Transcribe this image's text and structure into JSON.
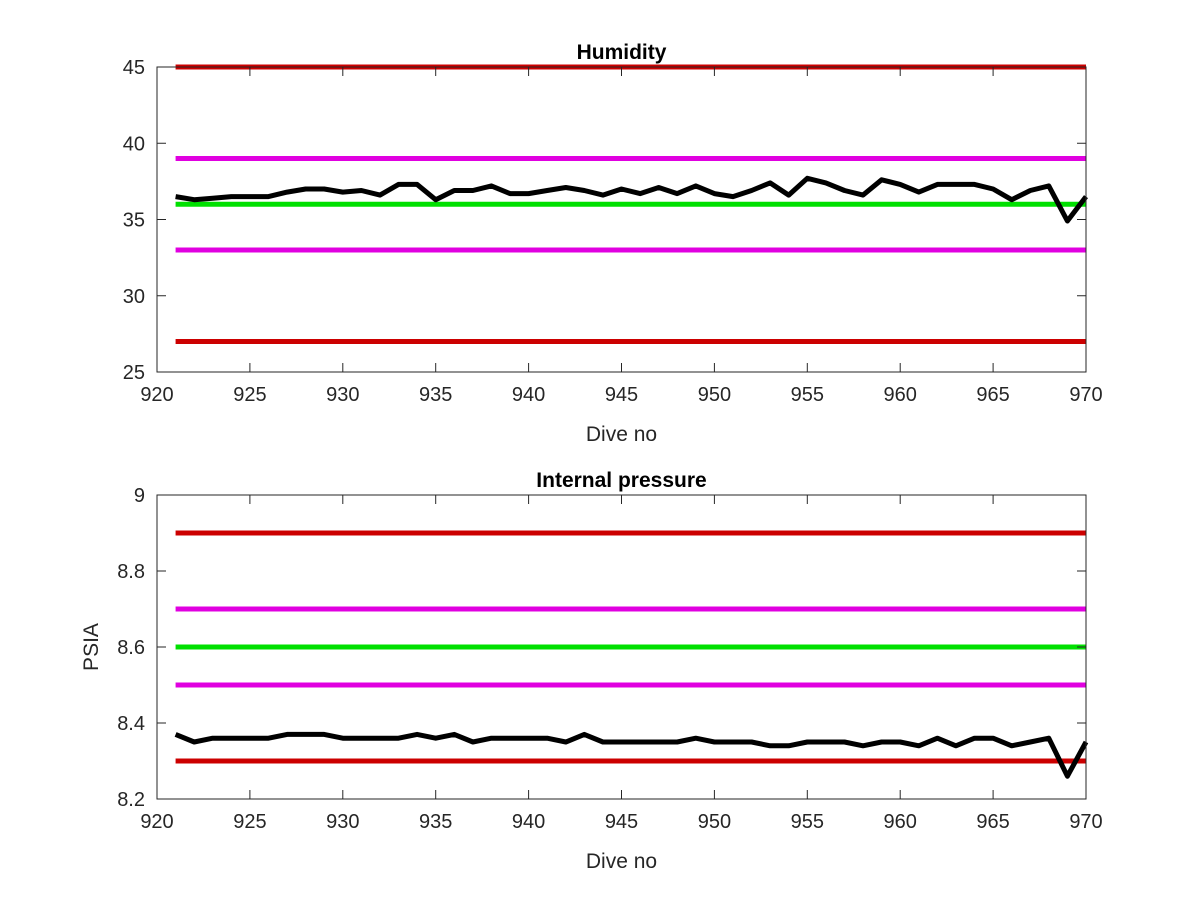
{
  "chart_data": [
    {
      "type": "line",
      "title": "Humidity",
      "xlabel": "Dive no",
      "ylabel": "",
      "xlim": [
        920,
        970
      ],
      "ylim": [
        25,
        45
      ],
      "xticks": [
        920,
        925,
        930,
        935,
        940,
        945,
        950,
        955,
        960,
        965,
        970
      ],
      "yticks": [
        25,
        30,
        35,
        40,
        45
      ],
      "grid": false,
      "reference_lines": [
        {
          "y": 45,
          "color": "#cc0000"
        },
        {
          "y": 39,
          "color": "#e000e0"
        },
        {
          "y": 36,
          "color": "#00e000"
        },
        {
          "y": 33,
          "color": "#e000e0"
        },
        {
          "y": 27,
          "color": "#cc0000"
        }
      ],
      "series": [
        {
          "color": "#000000",
          "x": [
            921,
            922,
            923,
            924,
            925,
            926,
            927,
            928,
            929,
            930,
            931,
            932,
            933,
            934,
            935,
            936,
            937,
            938,
            939,
            940,
            941,
            942,
            943,
            944,
            945,
            946,
            947,
            948,
            949,
            950,
            951,
            952,
            953,
            954,
            955,
            956,
            957,
            958,
            959,
            960,
            961,
            962,
            963,
            964,
            965,
            966,
            967,
            968,
            969,
            970
          ],
          "values": [
            36.5,
            36.3,
            36.4,
            36.5,
            36.5,
            36.5,
            36.8,
            37.0,
            37.0,
            36.8,
            36.9,
            36.6,
            37.3,
            37.3,
            36.3,
            36.9,
            36.9,
            37.2,
            36.7,
            36.7,
            36.9,
            37.1,
            36.9,
            36.6,
            37.0,
            36.7,
            37.1,
            36.7,
            37.2,
            36.7,
            36.5,
            36.9,
            37.4,
            36.6,
            37.7,
            37.4,
            36.9,
            36.6,
            37.6,
            37.3,
            36.8,
            37.3,
            37.3,
            37.3,
            37.0,
            36.3,
            36.9,
            37.2,
            34.9,
            36.5
          ]
        }
      ]
    },
    {
      "type": "line",
      "title": "Internal pressure",
      "xlabel": "Dive no",
      "ylabel": "PSIA",
      "xlim": [
        920,
        970
      ],
      "ylim": [
        8.2,
        9.0
      ],
      "xticks": [
        920,
        925,
        930,
        935,
        940,
        945,
        950,
        955,
        960,
        965,
        970
      ],
      "yticks": [
        8.2,
        8.4,
        8.6,
        8.8,
        9
      ],
      "yticklabels": [
        "8.2",
        "8.4",
        "8.6",
        "8.8",
        "9"
      ],
      "grid": false,
      "reference_lines": [
        {
          "y": 8.9,
          "color": "#cc0000"
        },
        {
          "y": 8.7,
          "color": "#e000e0"
        },
        {
          "y": 8.6,
          "color": "#00e000"
        },
        {
          "y": 8.5,
          "color": "#e000e0"
        },
        {
          "y": 8.3,
          "color": "#cc0000"
        }
      ],
      "series": [
        {
          "color": "#000000",
          "x": [
            921,
            922,
            923,
            924,
            925,
            926,
            927,
            928,
            929,
            930,
            931,
            932,
            933,
            934,
            935,
            936,
            937,
            938,
            939,
            940,
            941,
            942,
            943,
            944,
            945,
            946,
            947,
            948,
            949,
            950,
            951,
            952,
            953,
            954,
            955,
            956,
            957,
            958,
            959,
            960,
            961,
            962,
            963,
            964,
            965,
            966,
            967,
            968,
            969,
            970
          ],
          "values": [
            8.37,
            8.35,
            8.36,
            8.36,
            8.36,
            8.36,
            8.37,
            8.37,
            8.37,
            8.36,
            8.36,
            8.36,
            8.36,
            8.37,
            8.36,
            8.37,
            8.35,
            8.36,
            8.36,
            8.36,
            8.36,
            8.35,
            8.37,
            8.35,
            8.35,
            8.35,
            8.35,
            8.35,
            8.36,
            8.35,
            8.35,
            8.35,
            8.34,
            8.34,
            8.35,
            8.35,
            8.35,
            8.34,
            8.35,
            8.35,
            8.34,
            8.36,
            8.34,
            8.36,
            8.36,
            8.34,
            8.35,
            8.36,
            8.26,
            8.35
          ]
        }
      ]
    }
  ]
}
